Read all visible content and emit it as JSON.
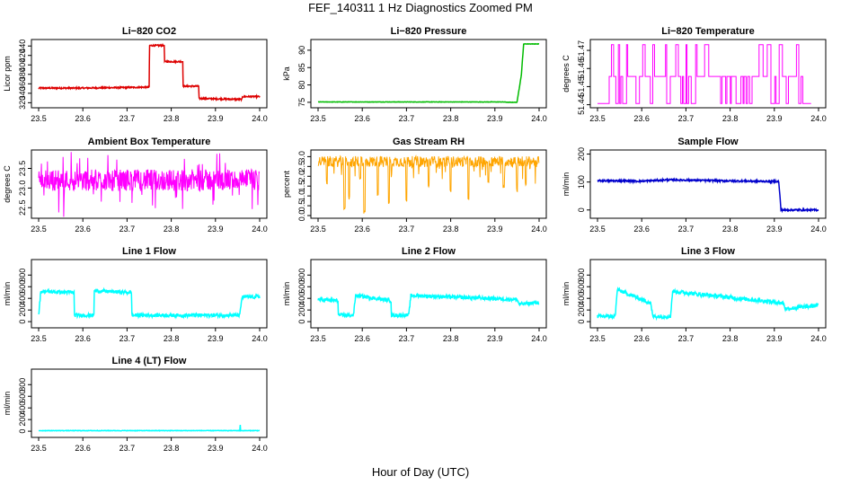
{
  "figure": {
    "title": "FEF_140311  1 Hz Diagnostics Zoomed PM",
    "xlabel": "Hour of Day (UTC)"
  },
  "chart_data": [
    {
      "type": "line",
      "title": "Li−820 CO2",
      "ylabel": "Licor ppm",
      "color": "#dd0000",
      "xlim": [
        23.5,
        24.0
      ],
      "ylim": [
        315,
        448
      ],
      "xticks": [
        "23.5",
        "23.6",
        "23.7",
        "23.8",
        "23.9",
        "24.0"
      ],
      "yticks": [
        320,
        340,
        360,
        380,
        400,
        420,
        440
      ],
      "series": [
        {
          "x": [
            23.5,
            23.6,
            23.68,
            23.75,
            23.751,
            23.784,
            23.785,
            23.826,
            23.827,
            23.862,
            23.863,
            23.96,
            23.961,
            24.0
          ],
          "y": [
            351,
            351,
            352,
            353,
            441,
            441,
            407,
            407,
            355,
            355,
            329,
            327,
            333,
            333
          ]
        }
      ]
    },
    {
      "type": "line",
      "title": "Li−820 Pressure",
      "ylabel": "kPa",
      "color": "#00bb00",
      "xlim": [
        23.5,
        24.0
      ],
      "ylim": [
        74.2,
        92.3
      ],
      "xticks": [
        "23.5",
        "23.6",
        "23.7",
        "23.8",
        "23.9",
        "24.0"
      ],
      "yticks": [
        75,
        80,
        85,
        90
      ],
      "series": [
        {
          "x": [
            23.5,
            23.86,
            23.92,
            23.93,
            23.95,
            23.96,
            23.965,
            24.0
          ],
          "y": [
            75.1,
            75.1,
            75.1,
            75.0,
            75.0,
            83.0,
            91.8,
            91.8
          ]
        }
      ]
    },
    {
      "type": "line",
      "title": "Li−820 Temperature",
      "ylabel": "degrees C",
      "color": "#ff00ff",
      "xlim": [
        23.5,
        24.0
      ],
      "ylim": [
        51.4398,
        51.4745
      ],
      "xticks": [
        "23.5",
        "23.6",
        "23.7",
        "23.8",
        "23.9",
        "24.0"
      ],
      "yticks": [
        51.44,
        51.45,
        51.46,
        51.47
      ],
      "levels": [
        51.4407,
        51.4556,
        51.4731
      ],
      "series": [
        {
          "x": [
            23.5,
            23.52,
            23.525,
            23.54,
            23.9,
            23.96,
            23.98
          ],
          "y": [
            51.4407,
            51.4407,
            51.4556,
            51.4556,
            51.4556,
            51.4556,
            51.4407
          ]
        }
      ]
    },
    {
      "type": "line",
      "title": "Ambient Box Temperature",
      "ylabel": "degrees C",
      "color": "#ff00ff",
      "xlim": [
        23.5,
        24.0
      ],
      "ylim": [
        22.3,
        23.9
      ],
      "xticks": [
        "23.5",
        "23.6",
        "23.7",
        "23.8",
        "23.9",
        "24.0"
      ],
      "yticks": [
        "22.5",
        "23.0",
        "23.5"
      ],
      "series": [
        {
          "x": [
            23.5,
            24.0
          ],
          "y": [
            23.2,
            23.2
          ]
        }
      ]
    },
    {
      "type": "line",
      "title": "Gas Stream RH",
      "ylabel": "percent",
      "color": "#ffa500",
      "xlim": [
        23.5,
        24.0
      ],
      "ylim": [
        0.0,
        3.2
      ],
      "xticks": [
        "23.5",
        "23.6",
        "23.7",
        "23.8",
        "23.9",
        "24.0"
      ],
      "yticks": [
        "0.0",
        "0.5",
        "1.0",
        "1.5",
        "2.0",
        "2.5",
        "3.0"
      ],
      "series": [
        {
          "x": [
            23.5,
            24.0
          ],
          "y": [
            2.8,
            2.8
          ]
        }
      ]
    },
    {
      "type": "line",
      "title": "Sample Flow",
      "ylabel": "ml/min",
      "color": "#0000cc",
      "xlim": [
        23.5,
        24.0
      ],
      "ylim": [
        -20,
        205
      ],
      "xticks": [
        "23.5",
        "23.6",
        "23.7",
        "23.8",
        "23.9",
        "24.0"
      ],
      "yticks": [
        0,
        100,
        200
      ],
      "series": [
        {
          "x": [
            23.5,
            23.6,
            23.66,
            23.8,
            23.91,
            23.915,
            24.0
          ],
          "y": [
            105,
            103,
            108,
            104,
            102,
            0,
            0
          ]
        }
      ]
    },
    {
      "type": "line",
      "title": "Line 1 Flow",
      "ylabel": "ml/min",
      "color": "#00ffff",
      "xlim": [
        23.5,
        24.0
      ],
      "ylim": [
        -60,
        1020
      ],
      "xticks": [
        "23.5",
        "23.6",
        "23.7",
        "23.8",
        "23.9",
        "24.0"
      ],
      "yticks": [
        0,
        200,
        400,
        600,
        800
      ],
      "series": [
        {
          "x": [
            23.5,
            23.505,
            23.58,
            23.581,
            23.625,
            23.626,
            23.71,
            23.711,
            23.955,
            23.96,
            24.0
          ],
          "y": [
            110,
            520,
            500,
            110,
            110,
            530,
            500,
            110,
            110,
            420,
            430
          ]
        }
      ]
    },
    {
      "type": "line",
      "title": "Line 2 Flow",
      "ylabel": "ml/min",
      "color": "#00ffff",
      "xlim": [
        23.5,
        24.0
      ],
      "ylim": [
        -60,
        1020
      ],
      "xticks": [
        "23.5",
        "23.6",
        "23.7",
        "23.8",
        "23.9",
        "24.0"
      ],
      "yticks": [
        0,
        200,
        400,
        600,
        800
      ],
      "series": [
        {
          "x": [
            23.5,
            23.545,
            23.546,
            23.58,
            23.585,
            23.665,
            23.666,
            23.705,
            23.71,
            23.95,
            23.955,
            24.0
          ],
          "y": [
            380,
            360,
            110,
            110,
            450,
            360,
            110,
            110,
            450,
            380,
            300,
            330
          ]
        }
      ]
    },
    {
      "type": "line",
      "title": "Line 3 Flow",
      "ylabel": "ml/min",
      "color": "#00ffff",
      "xlim": [
        23.5,
        24.0
      ],
      "ylim": [
        -60,
        1020
      ],
      "xticks": [
        "23.5",
        "23.6",
        "23.7",
        "23.8",
        "23.9",
        "24.0"
      ],
      "yticks": [
        0,
        200,
        400,
        600,
        800
      ],
      "series": [
        {
          "x": [
            23.5,
            23.505,
            23.54,
            23.545,
            23.62,
            23.625,
            23.665,
            23.67,
            23.92,
            23.925,
            24.0
          ],
          "y": [
            90,
            90,
            90,
            550,
            320,
            90,
            90,
            520,
            320,
            220,
            280
          ]
        }
      ]
    },
    {
      "type": "line",
      "title": "Line 4 (LT) Flow",
      "ylabel": "ml/min",
      "color": "#00ffff",
      "xlim": [
        23.5,
        24.0
      ],
      "ylim": [
        -60,
        1020
      ],
      "xticks": [
        "23.5",
        "23.6",
        "23.7",
        "23.8",
        "23.9",
        "24.0"
      ],
      "yticks": [
        0,
        200,
        400,
        600,
        800
      ],
      "series": [
        {
          "x": [
            23.5,
            23.955,
            23.956,
            23.957,
            24.0
          ],
          "y": [
            10,
            10,
            110,
            10,
            10
          ]
        }
      ]
    }
  ]
}
